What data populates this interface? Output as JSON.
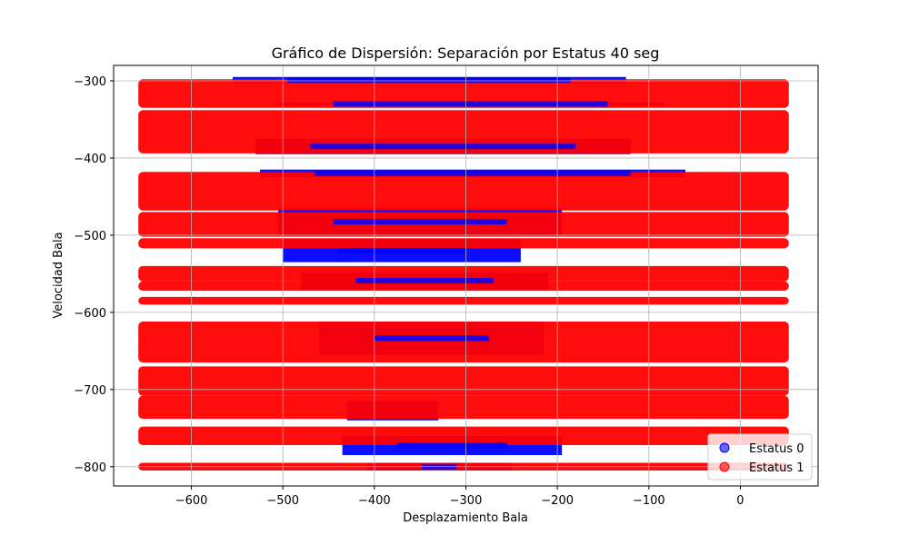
{
  "chart_data": {
    "type": "scatter",
    "title": "Gráfico de Dispersión: Separación por Estatus 40 seg",
    "xlabel": "Desplazamiento Bala",
    "ylabel": "Velocidad Bala",
    "xlim": [
      -685,
      85
    ],
    "ylim": [
      -825,
      -280
    ],
    "xticks": [
      -600,
      -500,
      -400,
      -300,
      -200,
      -100,
      0
    ],
    "xtick_labels": [
      "−600",
      "−500",
      "−400",
      "−300",
      "−200",
      "−100",
      "0"
    ],
    "yticks": [
      -300,
      -400,
      -500,
      -600,
      -700,
      -800
    ],
    "ytick_labels": [
      "−300",
      "−400",
      "−500",
      "−600",
      "−700",
      "−800"
    ],
    "grid": true,
    "legend_placement": "lower-right",
    "colors": {
      "status0": "#0000ff",
      "status1": "#ff0000"
    },
    "series": [
      {
        "name": "Estatus 0",
        "segments": [
          {
            "y": [
              -303,
              -295
            ],
            "x": [
              -555,
              -125
            ]
          },
          {
            "y": [
              -332,
              -328
            ],
            "x": [
              -505,
              -85
            ]
          },
          {
            "y": [
              -395,
              -375
            ],
            "x": [
              -530,
              -120
            ]
          },
          {
            "y": [
              -425,
              -415
            ],
            "x": [
              -525,
              -60
            ]
          },
          {
            "y": [
              -500,
              -465
            ],
            "x": [
              -505,
              -195
            ]
          },
          {
            "y": [
              -535,
              -505
            ],
            "x": [
              -500,
              -240
            ]
          },
          {
            "y": [
              -570,
              -548
            ],
            "x": [
              -480,
              -210
            ]
          },
          {
            "y": [
              -655,
              -612
            ],
            "x": [
              -460,
              -215
            ]
          },
          {
            "y": [
              -740,
              -715
            ],
            "x": [
              -430,
              -330
            ]
          },
          {
            "y": [
              -785,
              -760
            ],
            "x": [
              -435,
              -195
            ]
          },
          {
            "y": [
              -805,
              -795
            ],
            "x": [
              -408,
              -250
            ]
          }
        ]
      },
      {
        "name": "Estatus 1",
        "bands": [
          [
            -335,
            -298
          ],
          [
            -394,
            -338
          ],
          [
            -468,
            -418
          ],
          [
            -502,
            -470
          ],
          [
            -517,
            -504
          ],
          [
            -560,
            -540
          ],
          [
            -572,
            -560
          ],
          [
            -590,
            -580
          ],
          [
            -665,
            -612
          ],
          [
            -708,
            -670
          ],
          [
            -738,
            -708
          ],
          [
            -772,
            -748
          ],
          [
            -805,
            -795
          ]
        ],
        "x_range": [
          -655,
          50
        ]
      }
    ]
  },
  "legend": {
    "items": [
      {
        "label": "Estatus 0",
        "color": "#0000ff"
      },
      {
        "label": "Estatus 1",
        "color": "#ff0000"
      }
    ]
  }
}
